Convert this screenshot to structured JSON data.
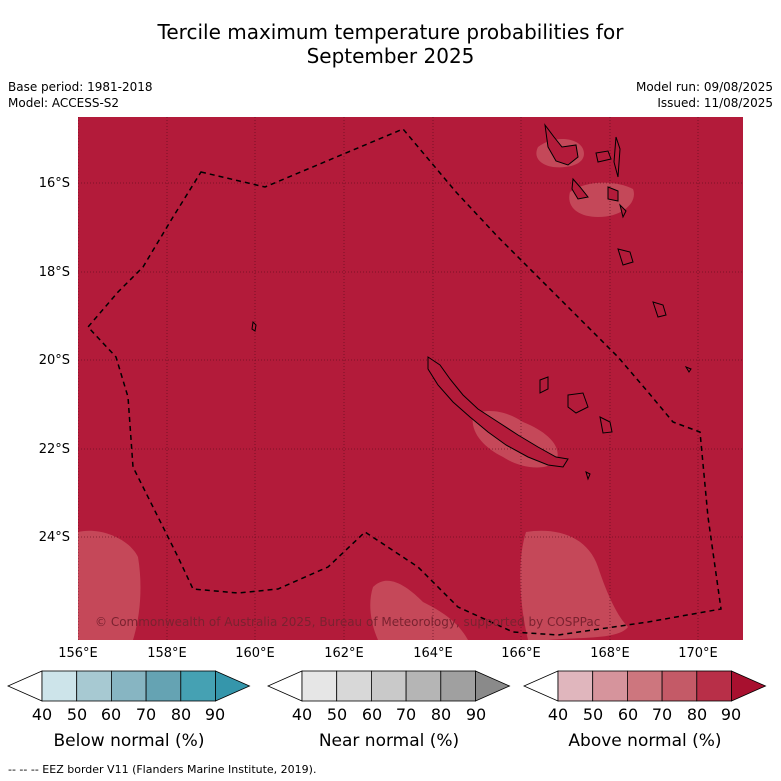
{
  "title_line1": "Tercile maximum temperature probabilities for",
  "title_line2": "September 2025",
  "base_period": "Base period: 1981-2018",
  "model": "Model: ACCESS-S2",
  "model_run": "Model run: 09/08/2025",
  "issued": "Issued: 11/08/2025",
  "copyright": "© Commonwealth of Australia 2025, Bureau of Meteorology, supported by COSPPac",
  "footnote": "--  --  -- EEZ border V11 (Flanders Marine Institute, 2019).",
  "map": {
    "lon_range": [
      156,
      171
    ],
    "lat_range": [
      -26.8,
      -14.8
    ],
    "lat_ticks": [
      "16°S",
      "18°S",
      "20°S",
      "22°S",
      "24°S"
    ],
    "lon_ticks": [
      "156°E",
      "158°E",
      "160°E",
      "162°E",
      "164°E",
      "166°E",
      "168°E",
      "170°E"
    ],
    "dominant_category": "Above normal",
    "dominant_probability_band": "80-90",
    "colors": {
      "above_80_90": "#b31b3a",
      "above_70_80": "#c8505f"
    }
  },
  "colorbars": [
    {
      "label": "Below normal (%)",
      "ticks": [
        "40",
        "50",
        "60",
        "70",
        "80",
        "90"
      ],
      "colors": [
        "#cde4ea",
        "#a7c9d2",
        "#87b5c2",
        "#65a3b3",
        "#45a1b3"
      ],
      "over": "#3596ab"
    },
    {
      "label": "Near normal (%)",
      "ticks": [
        "40",
        "50",
        "60",
        "70",
        "80",
        "90"
      ],
      "colors": [
        "#e6e6e6",
        "#d8d8d8",
        "#c9c9c9",
        "#b5b5b5",
        "#a0a0a0"
      ],
      "over": "#8a8a8a"
    },
    {
      "label": "Above normal (%)",
      "ticks": [
        "40",
        "50",
        "60",
        "70",
        "80",
        "90"
      ],
      "colors": [
        "#e0b6bd",
        "#d6949c",
        "#cd767e",
        "#c45a67",
        "#b82f48"
      ],
      "over": "#a8102f"
    }
  ]
}
